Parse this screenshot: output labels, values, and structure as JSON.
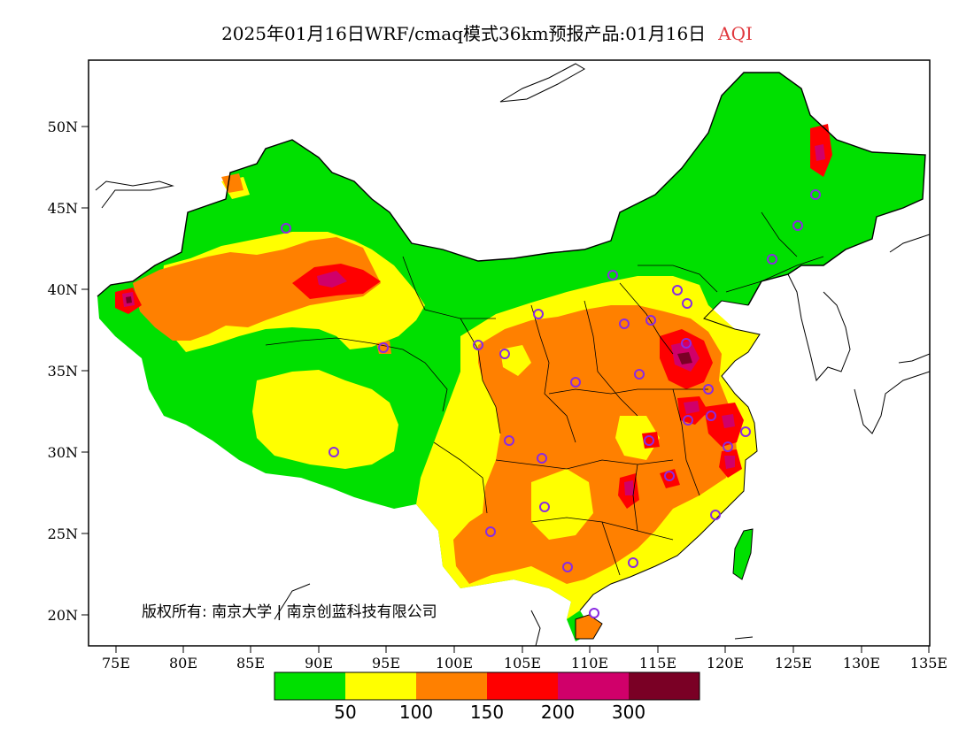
{
  "title": {
    "main": "2025年01月16日WRF/cmaq模式36km预报产品:01月16日",
    "variable": "AQI"
  },
  "axes": {
    "lat_labels": [
      "50N",
      "45N",
      "40N",
      "35N",
      "30N",
      "25N",
      "20N"
    ],
    "lon_labels": [
      "75E",
      "80E",
      "85E",
      "90E",
      "95E",
      "100E",
      "105E",
      "110E",
      "115E",
      "120E",
      "125E",
      "130E",
      "135E"
    ]
  },
  "copyright": "版权所有: 南京大学 | 南京创蓝科技有限公司",
  "colorbar": {
    "colors": [
      "#00e000",
      "#ffff00",
      "#ff8000",
      "#ff0000",
      "#d0006a",
      "#7a0025"
    ],
    "labels": [
      "50",
      "100",
      "150",
      "200",
      "300"
    ]
  }
}
